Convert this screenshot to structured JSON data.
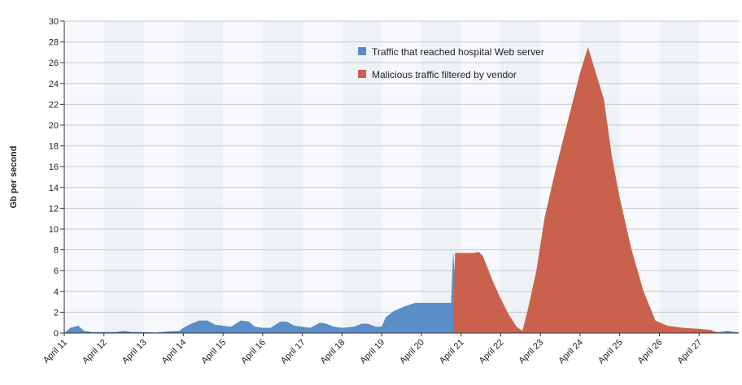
{
  "chart_data": {
    "type": "area",
    "title": "",
    "xlabel": "",
    "ylabel": "Gb per second",
    "ylim": [
      0,
      30
    ],
    "ytick_step": 2,
    "grid": true,
    "legend_position": "top-center-right",
    "categories": [
      "April 11",
      "April 12",
      "April 13",
      "April 14",
      "April 15",
      "April 16",
      "April 17",
      "April 18",
      "April 19",
      "April 20",
      "April 21",
      "April 22",
      "April 23",
      "April 24",
      "April 25",
      "April 26",
      "April 27"
    ],
    "x_range": [
      11,
      28
    ],
    "series": [
      {
        "name": "Traffic that reached hospital Web server",
        "color": "#5b8dc9",
        "points": [
          [
            11.0,
            0
          ],
          [
            11.15,
            0.5
          ],
          [
            11.35,
            0.7
          ],
          [
            11.5,
            0.2
          ],
          [
            11.7,
            0.1
          ],
          [
            12.0,
            0.1
          ],
          [
            12.3,
            0.1
          ],
          [
            12.5,
            0.2
          ],
          [
            12.7,
            0.1
          ],
          [
            13.0,
            0.1
          ],
          [
            13.3,
            0.05
          ],
          [
            13.6,
            0.15
          ],
          [
            13.9,
            0.2
          ],
          [
            14.0,
            0.5
          ],
          [
            14.2,
            0.9
          ],
          [
            14.4,
            1.2
          ],
          [
            14.6,
            1.2
          ],
          [
            14.8,
            0.8
          ],
          [
            15.0,
            0.7
          ],
          [
            15.2,
            0.6
          ],
          [
            15.45,
            1.2
          ],
          [
            15.65,
            1.1
          ],
          [
            15.8,
            0.6
          ],
          [
            16.0,
            0.5
          ],
          [
            16.2,
            0.5
          ],
          [
            16.45,
            1.1
          ],
          [
            16.6,
            1.1
          ],
          [
            16.8,
            0.7
          ],
          [
            17.0,
            0.6
          ],
          [
            17.2,
            0.5
          ],
          [
            17.45,
            1.0
          ],
          [
            17.6,
            0.9
          ],
          [
            17.8,
            0.6
          ],
          [
            18.0,
            0.5
          ],
          [
            18.3,
            0.6
          ],
          [
            18.5,
            0.9
          ],
          [
            18.65,
            0.9
          ],
          [
            18.85,
            0.6
          ],
          [
            19.0,
            0.6
          ],
          [
            19.1,
            1.5
          ],
          [
            19.3,
            2.1
          ],
          [
            19.6,
            2.6
          ],
          [
            19.85,
            2.9
          ],
          [
            20.2,
            2.9
          ],
          [
            20.5,
            2.9
          ],
          [
            20.75,
            2.9
          ],
          [
            20.8,
            7.8
          ],
          [
            20.9,
            2.8
          ],
          [
            21.0,
            2.3
          ],
          [
            21.1,
            2.5
          ],
          [
            21.2,
            1.2
          ],
          [
            21.4,
            0.5
          ],
          [
            21.7,
            0.3
          ],
          [
            22.0,
            0.2
          ],
          [
            22.2,
            0.3
          ],
          [
            22.4,
            0.4
          ],
          [
            22.6,
            0.1
          ],
          [
            22.8,
            0.3
          ],
          [
            23.0,
            0.9
          ],
          [
            23.2,
            0.9
          ],
          [
            23.4,
            0.4
          ],
          [
            23.6,
            0.2
          ],
          [
            23.8,
            0.5
          ],
          [
            24.0,
            0.5
          ],
          [
            24.2,
            0.6
          ],
          [
            24.4,
            0.5
          ],
          [
            24.6,
            0.2
          ],
          [
            24.85,
            0.6
          ],
          [
            25.0,
            0.5
          ],
          [
            25.2,
            0.2
          ],
          [
            25.5,
            0.1
          ],
          [
            26.0,
            0.1
          ],
          [
            26.5,
            0.1
          ],
          [
            27.0,
            0.1
          ],
          [
            27.5,
            0.1
          ],
          [
            27.7,
            0.2
          ],
          [
            27.9,
            0.1
          ],
          [
            28.0,
            0.05
          ]
        ]
      },
      {
        "name": "Malicious traffic filtered by vendor",
        "color": "#c9614d",
        "points": [
          [
            20.8,
            0
          ],
          [
            20.85,
            7.7
          ],
          [
            21.0,
            7.7
          ],
          [
            21.3,
            7.7
          ],
          [
            21.45,
            7.8
          ],
          [
            21.55,
            7.4
          ],
          [
            21.8,
            5.0
          ],
          [
            22.0,
            3.3
          ],
          [
            22.2,
            1.8
          ],
          [
            22.4,
            0.6
          ],
          [
            22.55,
            0.2
          ],
          [
            22.7,
            2.5
          ],
          [
            22.9,
            6.0
          ],
          [
            23.1,
            11.0
          ],
          [
            23.4,
            16.0
          ],
          [
            23.7,
            20.5
          ],
          [
            24.0,
            25.0
          ],
          [
            24.2,
            27.5
          ],
          [
            24.4,
            25.0
          ],
          [
            24.6,
            22.5
          ],
          [
            24.8,
            17.0
          ],
          [
            25.0,
            13.0
          ],
          [
            25.3,
            8.0
          ],
          [
            25.6,
            4.0
          ],
          [
            25.9,
            1.2
          ],
          [
            26.2,
            0.7
          ],
          [
            26.6,
            0.5
          ],
          [
            27.0,
            0.4
          ],
          [
            27.3,
            0.3
          ],
          [
            27.5,
            0
          ]
        ]
      }
    ]
  }
}
